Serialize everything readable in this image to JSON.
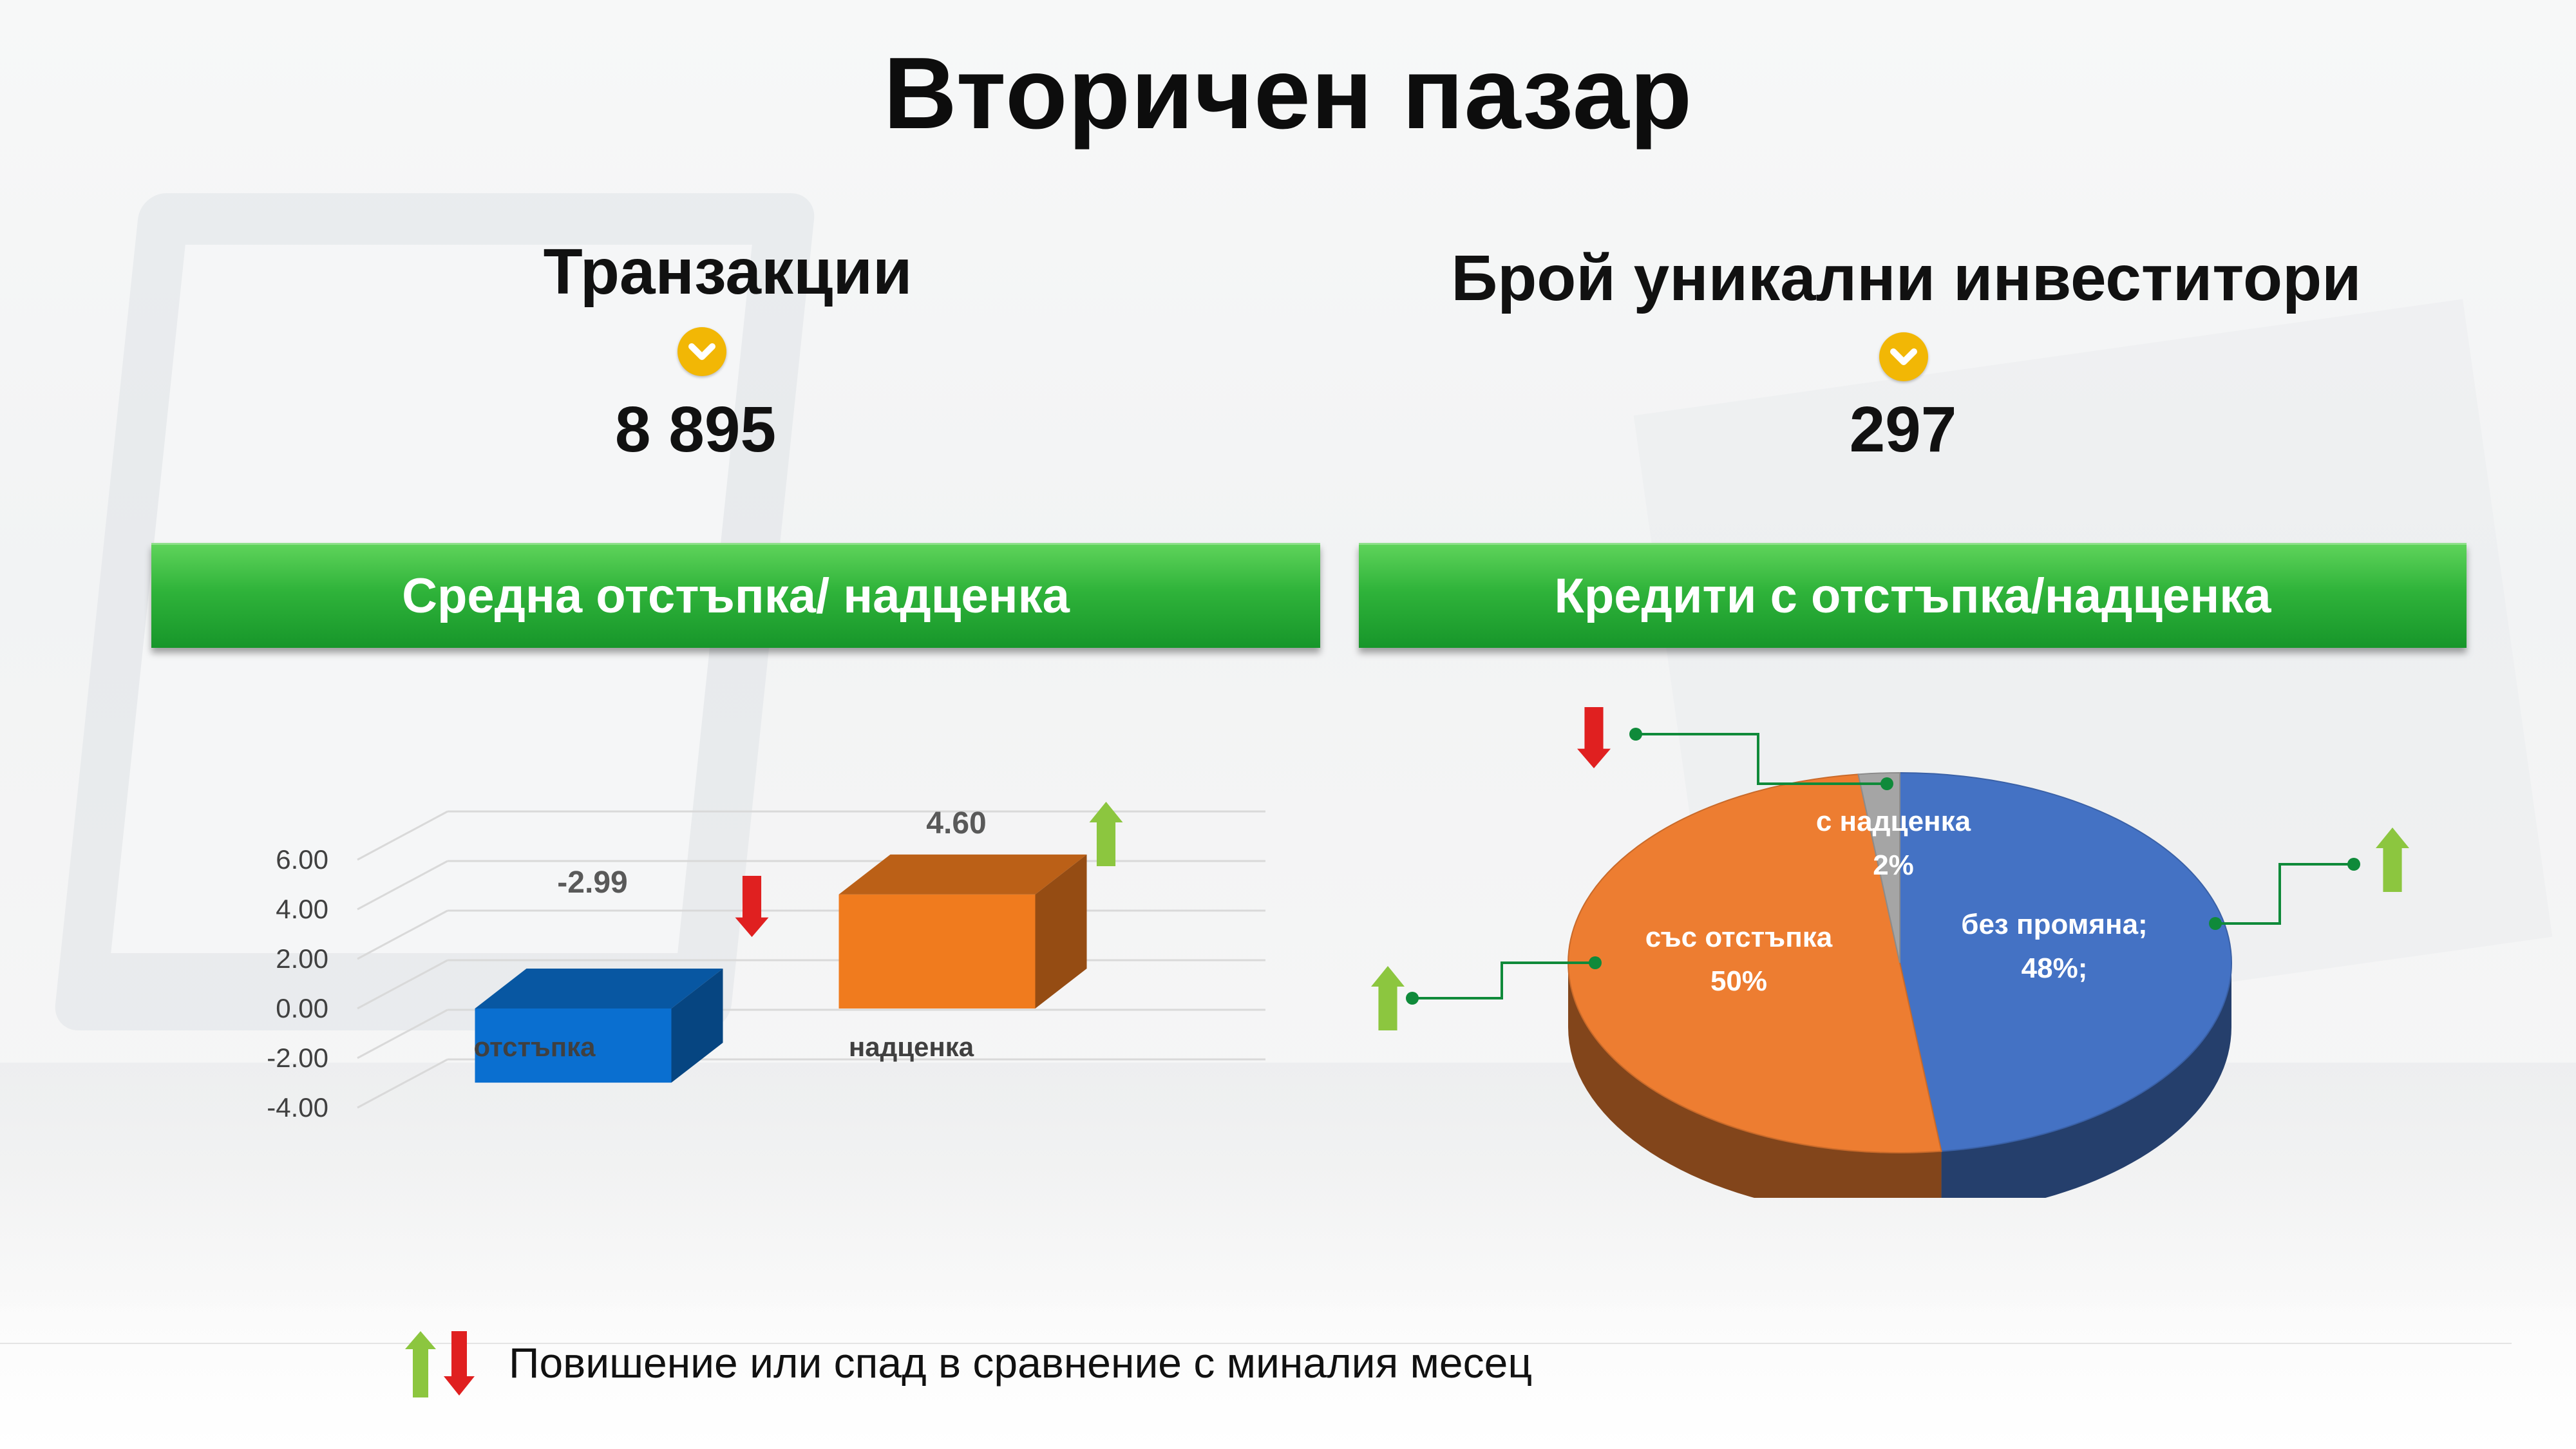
{
  "title": "Вторичен пазар",
  "kpis": {
    "transactions": {
      "label": "Транзакции",
      "value": "8 895",
      "trend_icon": "chevron-down-icon"
    },
    "investors": {
      "label": "Брой уникални инвеститори",
      "value": "297",
      "trend_icon": "chevron-down-icon"
    }
  },
  "banners": {
    "left": "Средна отстъпка/ надценка",
    "right": "Кредити с отстъпка/надценка"
  },
  "chart_data": [
    {
      "type": "bar",
      "categories": [
        "отстъпка",
        "надценка"
      ],
      "values": [
        -2.99,
        4.6
      ],
      "data_labels": [
        "-2.99",
        "4.60"
      ],
      "trends": [
        "down",
        "up"
      ],
      "ylim": [
        -4,
        6
      ],
      "yticks": [
        "6.00",
        "4.00",
        "2.00",
        "0.00",
        "-2.00",
        "-4.00"
      ],
      "colors": [
        "#0a6fd0",
        "#f07b1e"
      ],
      "grid": true
    },
    {
      "type": "pie",
      "slices": [
        {
          "label": "без промяна;",
          "value_label": "48%;",
          "value": 48,
          "color": "#4472c4",
          "trend": "up"
        },
        {
          "label": "със отстъпка",
          "value_label": "50%",
          "value": 50,
          "color": "#ed7d31",
          "trend": "up"
        },
        {
          "label": "с надценка",
          "value_label": "2%",
          "value": 2,
          "color": "#a5a5a5",
          "trend": "down"
        }
      ]
    }
  ],
  "legend": {
    "text": "Повишение или спад в сравнение с миналия месец",
    "colors": {
      "up": "#8cc63f",
      "down": "#e02020"
    }
  }
}
